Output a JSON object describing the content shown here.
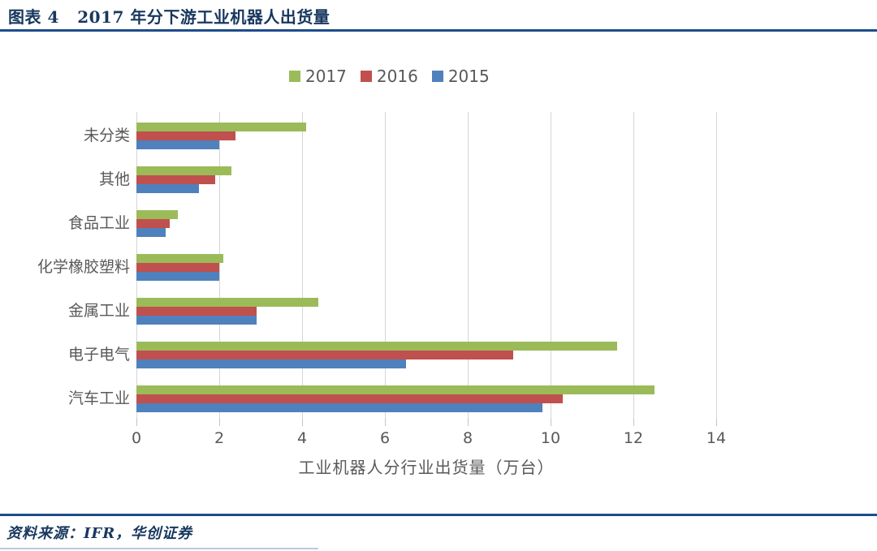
{
  "header": {
    "title": "图表 4   2017 年分下游工业机器人出货量"
  },
  "chart_data": {
    "type": "bar",
    "orientation": "horizontal",
    "title": "2017 年分下游工业机器人出货量",
    "categories": [
      "未分类",
      "其他",
      "食品工业",
      "化学橡胶塑料",
      "金属工业",
      "电子电气",
      "汽车工业"
    ],
    "series": [
      {
        "name": "2017",
        "color": "#9BBB59",
        "values": [
          4.1,
          2.3,
          1.0,
          2.1,
          4.4,
          11.6,
          12.5
        ]
      },
      {
        "name": "2016",
        "color": "#C0504D",
        "values": [
          2.4,
          1.9,
          0.8,
          2.0,
          2.9,
          9.1,
          10.3
        ]
      },
      {
        "name": "2015",
        "color": "#4F81BD",
        "values": [
          2.0,
          1.5,
          0.7,
          2.0,
          2.9,
          6.5,
          9.8
        ]
      }
    ],
    "xlabel": "工业机器人分行业出货量（万台）",
    "xlim": [
      0,
      14
    ],
    "xticks": [
      0,
      2,
      4,
      6,
      8,
      10,
      12,
      14
    ],
    "legend_position": "top",
    "grid": true
  },
  "footer": {
    "source": "资料来源：IFR，华创证券"
  },
  "colors": {
    "title_navy": "#17375E",
    "rule_navy": "#1d4c8a",
    "axis_text": "#595959",
    "gridline": "#d6d6d6"
  }
}
